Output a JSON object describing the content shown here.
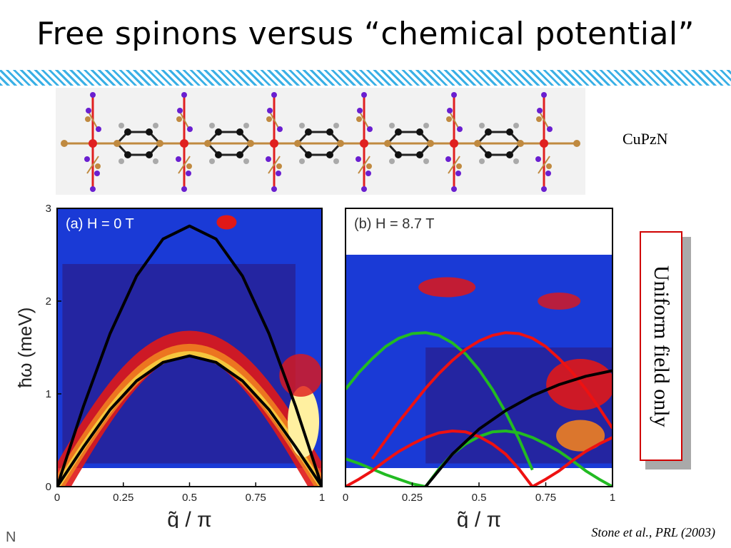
{
  "slide": {
    "title": "Free spinons versus “chemical potential”",
    "material_label": "CuPzN",
    "callout": "Uniform field only",
    "citation": "Stone et al., PRL (2003)",
    "corner_mark": "N"
  },
  "colors": {
    "hatch": "#3ab0e6",
    "callout_border": "#d00000",
    "copper": "#e02020",
    "nitrogen": "#6a1fd0",
    "carbon": "#111111",
    "hydrogen": "#aaaaaa",
    "bond": "#c08a40",
    "map_background": "#1a3ad6",
    "contour": "#111111",
    "curve_black": "#000000",
    "curve_red": "#ee1111",
    "curve_green": "#22bb22"
  },
  "chart_data": [
    {
      "type": "heatmap",
      "panel_label": "(a) H = 0 T",
      "xlabel": "q̃ / π",
      "ylabel": "ħω (meV)",
      "xlim": [
        0,
        1
      ],
      "ylim": [
        0,
        3
      ],
      "x_ticks": [
        "0",
        "0.25",
        "0.5",
        "0.75",
        "1"
      ],
      "y_ticks": [
        "0",
        "1",
        "2",
        "3"
      ],
      "lines": [
        {
          "color": "black",
          "x": [
            0,
            0.1,
            0.2,
            0.3,
            0.4,
            0.5,
            0.6,
            0.7,
            0.8,
            0.9,
            1.0
          ],
          "y": [
            0,
            0.87,
            1.65,
            2.27,
            2.67,
            2.81,
            2.67,
            2.27,
            1.65,
            0.87,
            0
          ]
        },
        {
          "color": "black",
          "x": [
            0,
            0.1,
            0.2,
            0.3,
            0.4,
            0.5,
            0.6,
            0.7,
            0.8,
            0.9,
            1.0
          ],
          "y": [
            0,
            0.43,
            0.83,
            1.14,
            1.34,
            1.41,
            1.34,
            1.14,
            0.83,
            0.43,
            0
          ]
        }
      ]
    },
    {
      "type": "heatmap",
      "panel_label": "(b) H = 8.7 T",
      "xlabel": "q̃ / π",
      "ylabel": "",
      "xlim": [
        0,
        1
      ],
      "ylim": [
        0,
        3
      ],
      "x_ticks": [
        "0",
        "0.25",
        "0.5",
        "0.75",
        "1"
      ],
      "data_range_y": [
        0.2,
        2.5
      ],
      "lines": [
        {
          "color": "green",
          "x": [
            0,
            0.05,
            0.1,
            0.15,
            0.2,
            0.25,
            0.3,
            0.35,
            0.4,
            0.45,
            0.5,
            0.55,
            0.6,
            0.65,
            0.7
          ],
          "y": [
            1.05,
            1.23,
            1.38,
            1.51,
            1.6,
            1.65,
            1.66,
            1.63,
            1.55,
            1.43,
            1.26,
            1.05,
            0.8,
            0.51,
            0.18
          ]
        },
        {
          "color": "green",
          "x": [
            0.3,
            0.35,
            0.4,
            0.45,
            0.5,
            0.55,
            0.6,
            0.65,
            0.7,
            0.75,
            0.8,
            0.85,
            0.9,
            0.95,
            1.0
          ],
          "y": [
            0,
            0.19,
            0.35,
            0.46,
            0.54,
            0.59,
            0.6,
            0.58,
            0.53,
            0.46,
            0.38,
            0.28,
            0.17,
            0.08,
            0
          ]
        },
        {
          "color": "green",
          "x": [
            0.7,
            0.75,
            0.8,
            0.85,
            0.9,
            0.95,
            1.0
          ],
          "y": [
            0.18,
            0.0,
            0.0,
            0.0,
            0.0,
            0.0,
            0.0
          ],
          "hidden": true
        },
        {
          "color": "green",
          "x": [
            0,
            0.05,
            0.1,
            0.15,
            0.2,
            0.25,
            0.3
          ],
          "y": [
            0.3,
            0.25,
            0.19,
            0.13,
            0.08,
            0.03,
            0
          ]
        },
        {
          "color": "red",
          "x": [
            0,
            0.05,
            0.1,
            0.15,
            0.2,
            0.25,
            0.3,
            0.35,
            0.4,
            0.45,
            0.5,
            0.55,
            0.6,
            0.65,
            0.7
          ],
          "y": [
            0,
            0.08,
            0.17,
            0.28,
            0.38,
            0.46,
            0.53,
            0.58,
            0.6,
            0.59,
            0.54,
            0.46,
            0.35,
            0.19,
            0
          ]
        },
        {
          "color": "red",
          "x": [
            0.1,
            0.15,
            0.2,
            0.25,
            0.3,
            0.35,
            0.4,
            0.45,
            0.5,
            0.55,
            0.6,
            0.65,
            0.7,
            0.75,
            0.8,
            0.85,
            0.9,
            0.95,
            1.0
          ],
          "y": [
            0.3,
            0.5,
            0.7,
            0.88,
            1.06,
            1.22,
            1.36,
            1.48,
            1.57,
            1.63,
            1.66,
            1.65,
            1.6,
            1.51,
            1.38,
            1.23,
            1.05,
            0.85,
            0.63
          ]
        },
        {
          "color": "red",
          "x": [
            0.7,
            0.75,
            0.8,
            0.85,
            0.9,
            0.95,
            1.0
          ],
          "y": [
            0,
            0.08,
            0.17,
            0.28,
            0.38,
            0.46,
            0.53
          ]
        },
        {
          "color": "black",
          "x": [
            0.3,
            0.4,
            0.5,
            0.6,
            0.7,
            0.8,
            0.9,
            1.0
          ],
          "y": [
            0,
            0.35,
            0.62,
            0.82,
            0.98,
            1.1,
            1.19,
            1.25
          ]
        }
      ]
    }
  ]
}
